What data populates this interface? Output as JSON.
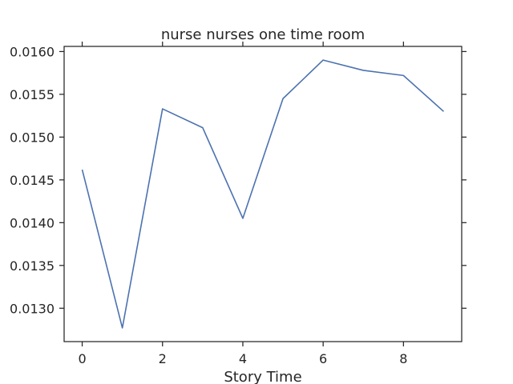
{
  "chart_data": {
    "type": "line",
    "title": "nurse nurses one time room",
    "xlabel": "Story Time",
    "ylabel": "",
    "x": [
      0,
      1,
      2,
      3,
      4,
      5,
      6,
      7,
      8,
      9
    ],
    "series": [
      {
        "values": [
          0.01462,
          0.01277,
          0.01533,
          0.01511,
          0.01405,
          0.01545,
          0.0159,
          0.01578,
          0.01572,
          0.0153
        ],
        "color": "#4c72b0"
      }
    ],
    "xlim": [
      -0.45,
      9.45
    ],
    "ylim": [
      0.01261,
      0.01606
    ],
    "x_ticks": [
      0,
      2,
      4,
      6,
      8
    ],
    "x_tick_labels": [
      "0",
      "2",
      "4",
      "6",
      "8"
    ],
    "y_ticks": [
      0.013,
      0.0135,
      0.014,
      0.0145,
      0.015,
      0.0155,
      0.016
    ],
    "y_tick_labels": [
      "0.0130",
      "0.0135",
      "0.0140",
      "0.0145",
      "0.0150",
      "0.0155",
      "0.0160"
    ],
    "grid": false,
    "ticks_mirrored": true
  }
}
